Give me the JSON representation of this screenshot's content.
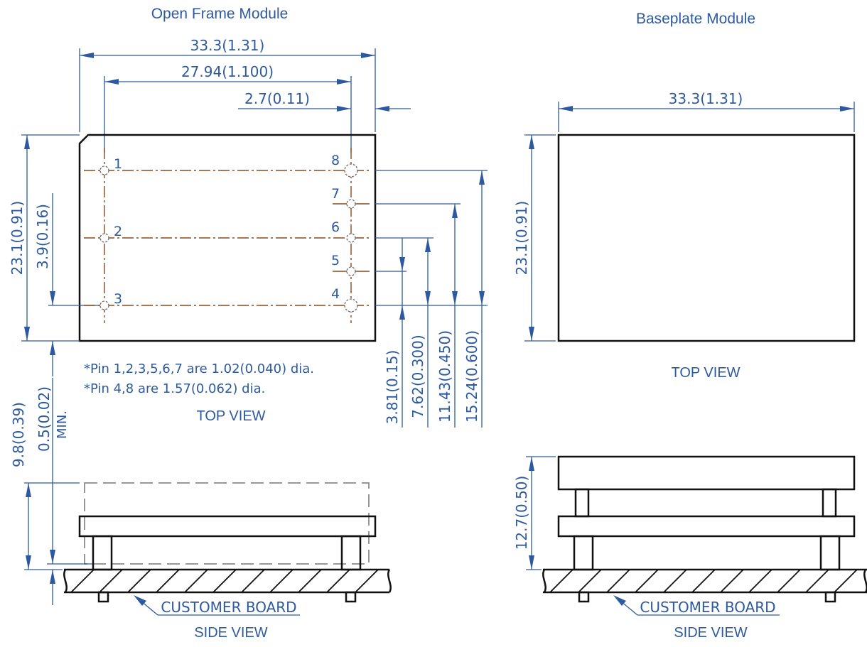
{
  "open_frame": {
    "title": "Open Frame Module",
    "dims": {
      "overall_width": "33.3(1.31)",
      "pin_span_x": "27.94(1.100)",
      "edge_to_pin": "2.7(0.11)",
      "overall_height": "23.1(0.91)",
      "edge_to_pin3": "3.9(0.16)",
      "height_total": "9.8(0.39)",
      "standoff": "0.5(0.02)",
      "standoff_note": "MIN.",
      "pin5_offset": "3.81(0.15)",
      "pin6_offset": "7.62(0.300)",
      "pin7_offset": "11.43(0.450)",
      "pin8_offset": "15.24(0.600)"
    },
    "pins": [
      "1",
      "2",
      "3",
      "4",
      "5",
      "6",
      "7",
      "8"
    ],
    "notes": [
      "*Pin 1,2,3,5,6,7 are 1.02(0.040) dia.",
      "*Pin 4,8 are 1.57(0.062) dia."
    ],
    "top_view_label": "TOP VIEW",
    "side_view_label": "SIDE VIEW",
    "board_label": "CUSTOMER BOARD"
  },
  "baseplate": {
    "title": "Baseplate Module",
    "dims": {
      "overall_width": "33.3(1.31)",
      "overall_height": "23.1(0.91)",
      "height_total": "12.7(0.50)"
    },
    "top_view_label": "TOP VIEW",
    "side_view_label": "SIDE VIEW",
    "board_label": "CUSTOMER BOARD"
  }
}
